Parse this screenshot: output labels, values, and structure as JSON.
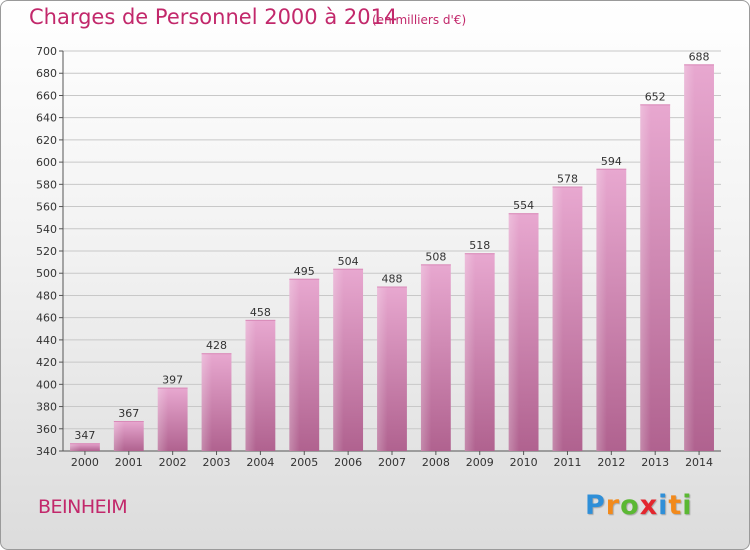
{
  "header": {
    "title": "Charges de Personnel 2000 à 2014",
    "subtitle": "(en milliers d'€)"
  },
  "footer": {
    "commune": "BEINHEIM"
  },
  "logo": {
    "text": "Proxiti",
    "letters": [
      {
        "ch": "P",
        "color": "#2f8fd8"
      },
      {
        "ch": "r",
        "color": "#f28a1c"
      },
      {
        "ch": "o",
        "color": "#5bb833"
      },
      {
        "ch": "x",
        "color": "#e3262e"
      },
      {
        "ch": "i",
        "color": "#2f8fd8"
      },
      {
        "ch": "t",
        "color": "#f28a1c"
      },
      {
        "ch": "i",
        "color": "#5bb833"
      }
    ]
  },
  "colors": {
    "accent": "#c2286b",
    "bar_light": "#e8a8d0",
    "bar_dark": "#b0628f"
  },
  "chart_data": {
    "type": "bar",
    "title": "Charges de Personnel 2000 à 2014",
    "subtitle": "(en milliers d'€)",
    "categories": [
      "2000",
      "2001",
      "2002",
      "2003",
      "2004",
      "2005",
      "2006",
      "2007",
      "2008",
      "2009",
      "2010",
      "2011",
      "2012",
      "2013",
      "2014"
    ],
    "values": [
      347,
      367,
      397,
      428,
      458,
      495,
      504,
      488,
      508,
      518,
      554,
      578,
      594,
      652,
      688
    ],
    "ylim": [
      340,
      700
    ],
    "yticks": [
      340,
      360,
      380,
      400,
      420,
      440,
      460,
      480,
      500,
      520,
      540,
      560,
      580,
      600,
      620,
      640,
      660,
      680,
      700
    ],
    "grid": true,
    "xlabel": "",
    "ylabel": ""
  }
}
